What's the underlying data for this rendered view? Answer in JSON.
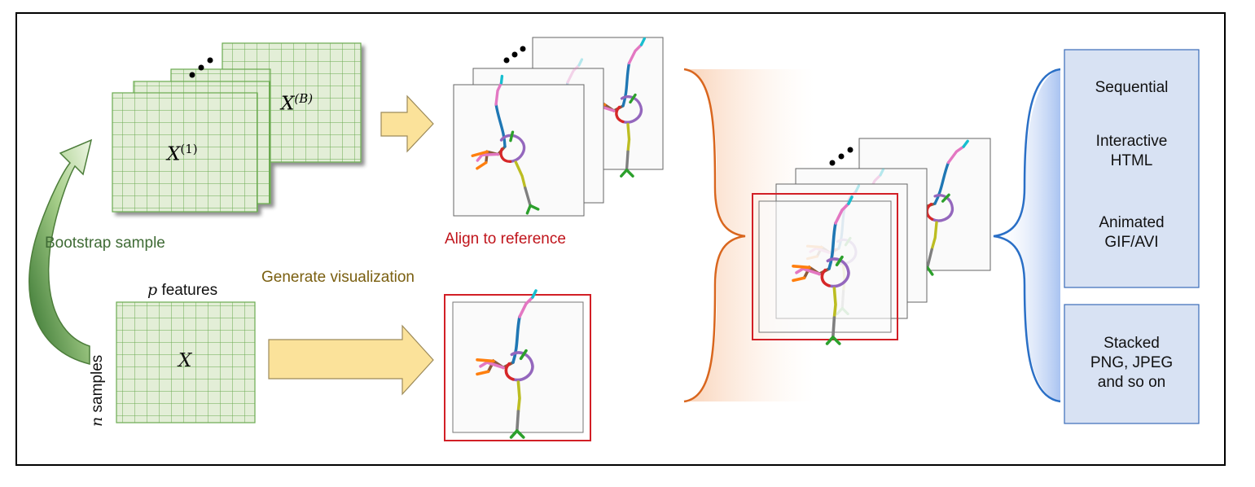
{
  "bootstrap": {
    "label": "Bootstrap sample",
    "matrix_first": "X",
    "matrix_first_sup": "(1)",
    "matrix_last": "X",
    "matrix_last_sup": "(B)",
    "ellipsis": "⋯"
  },
  "original": {
    "matrix": "X",
    "features_var": "p",
    "features_word": " features",
    "samples_var": "n",
    "samples_word": " samples"
  },
  "steps": {
    "generate": "Generate visualization",
    "align": "Align to reference"
  },
  "outputs": {
    "sequential": "Sequential",
    "interactive": [
      "Interactive",
      "HTML"
    ],
    "animated": [
      "Animated",
      "GIF/AVI"
    ],
    "stacked": [
      "Stacked",
      "PNG, JPEG",
      "and so on"
    ]
  },
  "colors": {
    "grid_fill": "#e3eed7",
    "grid_line": "#6aaa4f",
    "bootstrap_text": "#3f6b35",
    "generate_text": "#7a5f10",
    "align_text": "#c0141b",
    "reference_frame": "#d21f26",
    "arrow_fill": "#fbe29a",
    "arrow_stroke": "#9c8a5a",
    "orange_brace": "#d9661e",
    "blue_brace": "#2a6fc6",
    "output_box_fill": "#d8e2f3",
    "output_box_stroke": "#3a6bb8"
  }
}
